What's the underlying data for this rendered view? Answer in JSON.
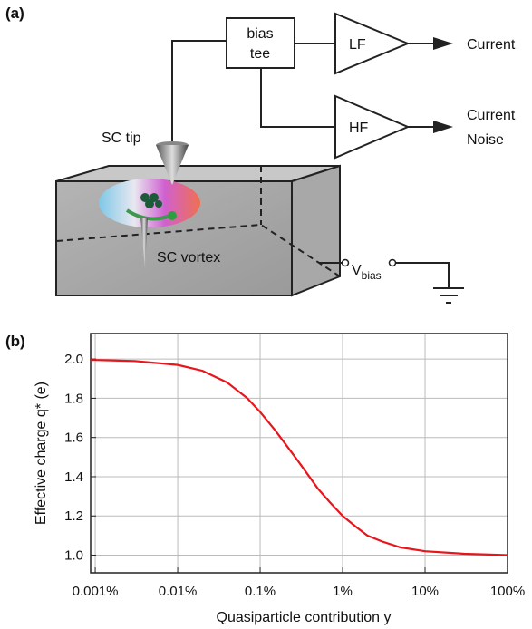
{
  "diagram": {
    "panel": "(a)",
    "bias_tee": [
      "bias",
      "tee"
    ],
    "lf": "LF",
    "hf": "HF",
    "out_current": "Current",
    "out_noise": [
      "Current",
      "Noise"
    ],
    "tip": "SC tip",
    "vortex": "SC vortex",
    "vbias": {
      "main": "V",
      "sub": "bias"
    }
  },
  "chart_data": {
    "type": "line",
    "panel": "(b)",
    "xlabel": "Quasiparticle contribution y",
    "ylabel": "Effective charge q* (e)",
    "log_x": true,
    "grid": true,
    "xlim": [
      0.00088,
      100
    ],
    "ylim": [
      0.91,
      2.13
    ],
    "xticks": [
      {
        "value": 0.001,
        "label": "0.001%"
      },
      {
        "value": 0.01,
        "label": "0.01%"
      },
      {
        "value": 0.1,
        "label": "0.1%"
      },
      {
        "value": 1,
        "label": "1%"
      },
      {
        "value": 10,
        "label": "10%"
      },
      {
        "value": 100,
        "label": "100%"
      }
    ],
    "yticks": [
      {
        "value": 1.0,
        "label": "1.0"
      },
      {
        "value": 1.2,
        "label": "1.2"
      },
      {
        "value": 1.4,
        "label": "1.4"
      },
      {
        "value": 1.6,
        "label": "1.6"
      },
      {
        "value": 1.8,
        "label": "1.8"
      },
      {
        "value": 2.0,
        "label": "2.0"
      }
    ],
    "series": [
      {
        "name": "q*",
        "color": "#e8151b",
        "x": [
          0.00088,
          0.001,
          0.003,
          0.01,
          0.02,
          0.04,
          0.07,
          0.1,
          0.15,
          0.2,
          0.3,
          0.5,
          0.7,
          1,
          1.5,
          2,
          3,
          5,
          10,
          30,
          100
        ],
        "values": [
          1.995,
          1.995,
          1.99,
          1.97,
          1.94,
          1.88,
          1.8,
          1.73,
          1.64,
          1.57,
          1.47,
          1.34,
          1.27,
          1.2,
          1.14,
          1.1,
          1.07,
          1.04,
          1.02,
          1.007,
          1.0
        ]
      }
    ]
  }
}
